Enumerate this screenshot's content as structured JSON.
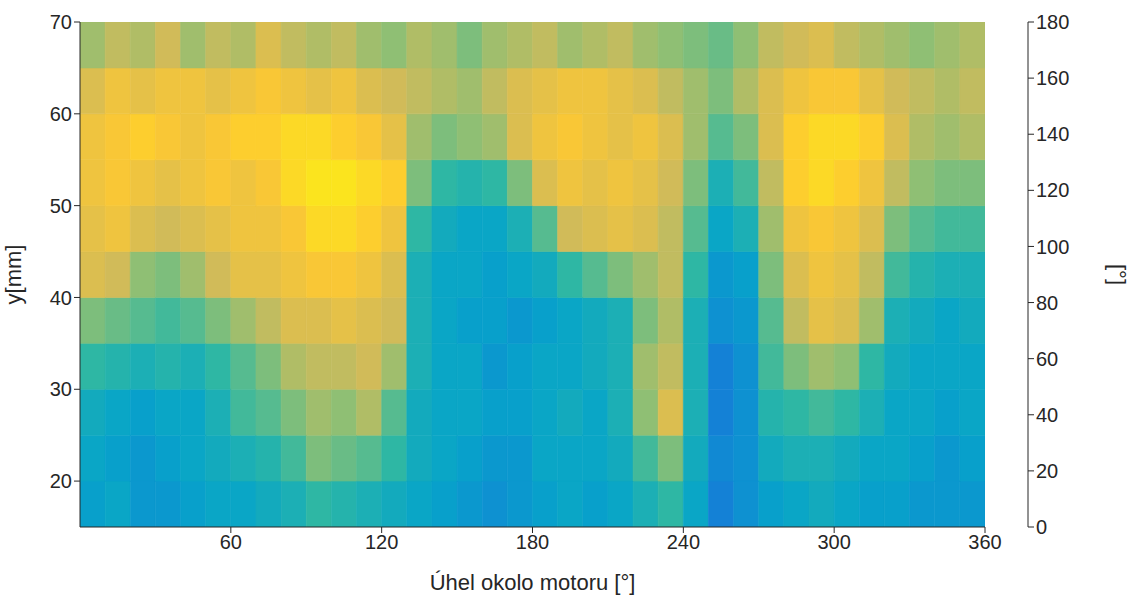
{
  "chart_data": {
    "type": "heatmap",
    "xlabel": "Úhel okolo motoru [°]",
    "ylabel": "y[mm]",
    "xlim": [
      0,
      360
    ],
    "xticks": [
      60,
      120,
      180,
      240,
      300,
      360
    ],
    "ylim": [
      15,
      70
    ],
    "yticks": [
      20,
      30,
      40,
      50,
      60,
      70
    ],
    "x_edges": [
      0,
      10,
      20,
      30,
      40,
      50,
      60,
      70,
      80,
      90,
      100,
      110,
      120,
      130,
      140,
      150,
      160,
      170,
      180,
      190,
      200,
      210,
      220,
      230,
      240,
      250,
      260,
      270,
      280,
      290,
      300,
      310,
      320,
      330,
      340,
      350,
      360
    ],
    "y_edges": [
      15,
      20,
      25,
      30,
      35,
      40,
      45,
      50,
      55,
      60,
      65,
      70
    ],
    "cells": [
      [
        65,
        70,
        60,
        60,
        65,
        70,
        70,
        75,
        80,
        90,
        85,
        80,
        75,
        70,
        65,
        60,
        55,
        60,
        65,
        70,
        65,
        70,
        80,
        90,
        70,
        45,
        55,
        65,
        70,
        75,
        70,
        65,
        65,
        60,
        60,
        60
      ],
      [
        70,
        65,
        60,
        65,
        70,
        75,
        80,
        85,
        95,
        110,
        105,
        100,
        90,
        75,
        70,
        65,
        60,
        60,
        70,
        70,
        70,
        75,
        95,
        110,
        75,
        50,
        55,
        75,
        80,
        80,
        75,
        70,
        70,
        65,
        60,
        65
      ],
      [
        75,
        70,
        65,
        70,
        70,
        80,
        95,
        100,
        110,
        120,
        115,
        125,
        100,
        75,
        70,
        70,
        65,
        65,
        70,
        75,
        70,
        80,
        115,
        140,
        80,
        45,
        55,
        85,
        90,
        95,
        90,
        80,
        70,
        70,
        65,
        70
      ],
      [
        90,
        85,
        80,
        85,
        80,
        90,
        100,
        110,
        125,
        130,
        130,
        135,
        120,
        80,
        70,
        70,
        60,
        65,
        70,
        70,
        75,
        80,
        120,
        130,
        80,
        45,
        55,
        95,
        110,
        120,
        115,
        90,
        75,
        70,
        70,
        70
      ],
      [
        110,
        105,
        100,
        95,
        100,
        110,
        120,
        130,
        140,
        140,
        145,
        140,
        135,
        80,
        70,
        65,
        65,
        60,
        65,
        70,
        75,
        80,
        110,
        125,
        80,
        55,
        60,
        100,
        130,
        145,
        140,
        120,
        80,
        75,
        70,
        75
      ],
      [
        140,
        135,
        115,
        110,
        120,
        135,
        145,
        145,
        150,
        155,
        155,
        150,
        140,
        80,
        70,
        70,
        65,
        70,
        75,
        90,
        100,
        110,
        120,
        130,
        90,
        60,
        65,
        110,
        140,
        150,
        145,
        130,
        95,
        85,
        80,
        80
      ],
      [
        145,
        150,
        140,
        135,
        140,
        145,
        150,
        150,
        155,
        165,
        165,
        160,
        150,
        90,
        75,
        70,
        70,
        80,
        100,
        135,
        140,
        145,
        140,
        130,
        100,
        70,
        80,
        120,
        150,
        155,
        150,
        140,
        110,
        100,
        95,
        95
      ],
      [
        150,
        155,
        150,
        145,
        150,
        155,
        150,
        155,
        165,
        170,
        170,
        165,
        160,
        110,
        90,
        85,
        90,
        110,
        140,
        150,
        145,
        150,
        145,
        135,
        110,
        80,
        95,
        130,
        160,
        165,
        160,
        150,
        130,
        115,
        110,
        110
      ],
      [
        150,
        155,
        160,
        155,
        150,
        155,
        160,
        160,
        165,
        165,
        160,
        155,
        145,
        120,
        110,
        115,
        120,
        140,
        150,
        155,
        150,
        145,
        150,
        140,
        120,
        100,
        110,
        140,
        160,
        165,
        165,
        160,
        140,
        125,
        120,
        125
      ],
      [
        140,
        150,
        145,
        150,
        150,
        145,
        150,
        155,
        150,
        145,
        150,
        140,
        135,
        130,
        125,
        120,
        130,
        140,
        145,
        150,
        150,
        145,
        140,
        130,
        120,
        110,
        125,
        140,
        150,
        155,
        155,
        145,
        135,
        130,
        125,
        130
      ],
      [
        120,
        130,
        125,
        135,
        120,
        130,
        125,
        140,
        130,
        125,
        130,
        120,
        115,
        125,
        120,
        110,
        120,
        125,
        130,
        120,
        125,
        130,
        120,
        115,
        110,
        105,
        115,
        130,
        135,
        140,
        130,
        125,
        120,
        115,
        120,
        125
      ]
    ],
    "color_range": [
      0,
      180
    ],
    "color_ticks": [
      0,
      20,
      40,
      60,
      80,
      100,
      120,
      140,
      160,
      180
    ],
    "color_label": "[°]"
  }
}
